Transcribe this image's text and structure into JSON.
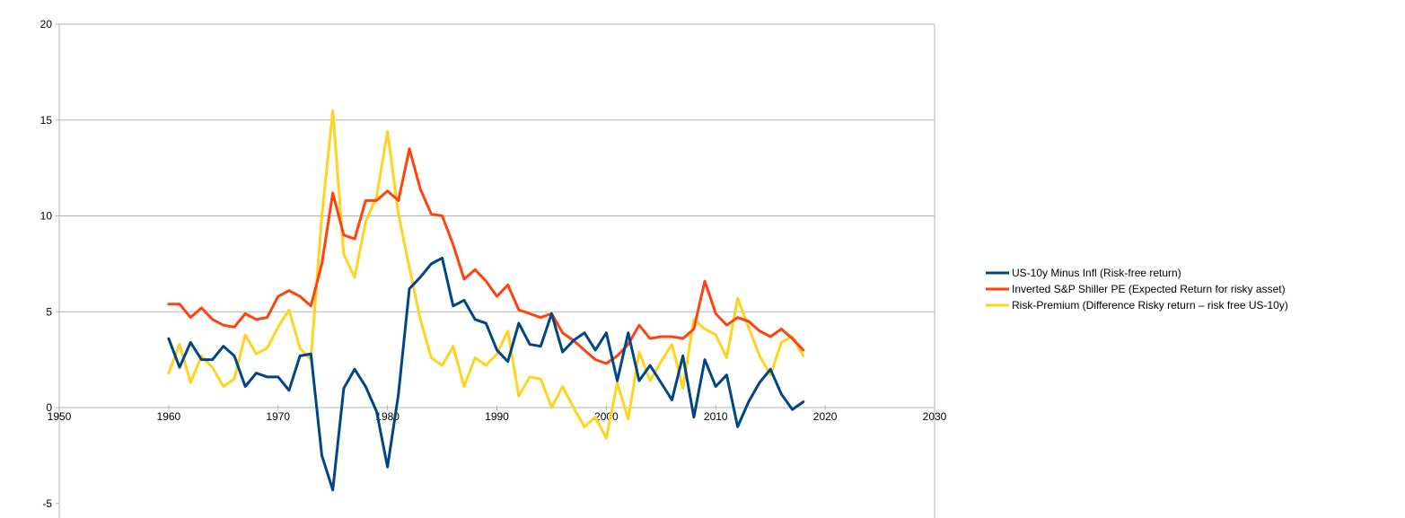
{
  "chart_data": {
    "type": "line",
    "title": "",
    "xlabel": "",
    "ylabel": "",
    "xlim": [
      1950,
      2030
    ],
    "ylim": [
      -5,
      20
    ],
    "x_ticks": [
      1950,
      1960,
      1970,
      1980,
      1990,
      2000,
      2010,
      2020,
      2030
    ],
    "y_ticks": [
      -5,
      0,
      5,
      10,
      15,
      20
    ],
    "x_tick_labels": [
      "1950",
      "1960",
      "1970",
      "1980",
      "1990",
      "2000",
      "2010",
      "2020",
      "2030"
    ],
    "y_tick_labels": [
      "-5",
      "0",
      "5",
      "10",
      "15",
      "20"
    ],
    "grid": "horizontal",
    "legend_position": "right",
    "x": [
      1960,
      1961,
      1962,
      1963,
      1964,
      1965,
      1966,
      1967,
      1968,
      1969,
      1970,
      1971,
      1972,
      1973,
      1974,
      1975,
      1976,
      1977,
      1978,
      1979,
      1980,
      1981,
      1982,
      1983,
      1984,
      1985,
      1986,
      1987,
      1988,
      1989,
      1990,
      1991,
      1992,
      1993,
      1994,
      1995,
      1996,
      1997,
      1998,
      1999,
      2000,
      2001,
      2002,
      2003,
      2004,
      2005,
      2006,
      2007,
      2008,
      2009,
      2010,
      2011,
      2012,
      2013,
      2014,
      2015,
      2016,
      2017,
      2018
    ],
    "series": [
      {
        "name": "US-10y Minus Infl (Risk-free return)",
        "color": "#004586",
        "values": [
          3.6,
          2.1,
          3.4,
          2.5,
          2.5,
          3.2,
          2.7,
          1.1,
          1.8,
          1.6,
          1.6,
          0.9,
          2.7,
          2.8,
          -2.5,
          -4.3,
          1.0,
          2.0,
          1.1,
          -0.2,
          -3.1,
          0.7,
          6.2,
          6.8,
          7.5,
          7.8,
          5.3,
          5.6,
          4.6,
          4.4,
          3.0,
          2.4,
          4.4,
          3.3,
          3.2,
          4.9,
          2.9,
          3.5,
          3.9,
          3.0,
          3.9,
          1.4,
          3.9,
          1.4,
          2.2,
          1.3,
          0.4,
          2.7,
          -0.5,
          2.5,
          1.1,
          1.7,
          -1.0,
          0.3,
          1.3,
          2.0,
          0.7,
          -0.1,
          0.3
        ]
      },
      {
        "name": "Inverted S&P Shiller PE (Expected Return for risky asset)",
        "color": "#ff420e",
        "values": [
          5.4,
          5.4,
          4.7,
          5.2,
          4.6,
          4.3,
          4.2,
          4.9,
          4.6,
          4.7,
          5.8,
          6.1,
          5.8,
          5.3,
          7.5,
          11.2,
          9.0,
          8.8,
          10.8,
          10.8,
          11.3,
          10.8,
          13.5,
          11.4,
          10.1,
          10.0,
          8.5,
          6.7,
          7.2,
          6.6,
          5.8,
          6.4,
          5.1,
          4.9,
          4.7,
          4.9,
          3.9,
          3.5,
          3.0,
          2.5,
          2.3,
          2.7,
          3.3,
          4.3,
          3.6,
          3.7,
          3.7,
          3.6,
          4.1,
          6.6,
          4.9,
          4.3,
          4.7,
          4.5,
          4.0,
          3.7,
          4.1,
          3.6,
          3.0
        ]
      },
      {
        "name": "Risk-Premium (Difference Risky return – risk free US-10y)",
        "color": "#ffd320",
        "values": [
          1.8,
          3.3,
          1.3,
          2.7,
          2.1,
          1.1,
          1.5,
          3.8,
          2.8,
          3.1,
          4.2,
          5.1,
          3.1,
          2.5,
          10.0,
          15.5,
          8.0,
          6.8,
          9.7,
          11.0,
          14.4,
          10.1,
          7.3,
          4.6,
          2.6,
          2.2,
          3.2,
          1.1,
          2.6,
          2.2,
          2.8,
          4.0,
          0.6,
          1.6,
          1.5,
          0.0,
          1.1,
          0.0,
          -1.0,
          -0.5,
          -1.6,
          1.3,
          -0.6,
          2.9,
          1.4,
          2.4,
          3.3,
          1.0,
          4.6,
          4.1,
          3.8,
          2.6,
          5.7,
          4.2,
          2.7,
          1.7,
          3.4,
          3.7,
          2.7
        ]
      }
    ]
  }
}
